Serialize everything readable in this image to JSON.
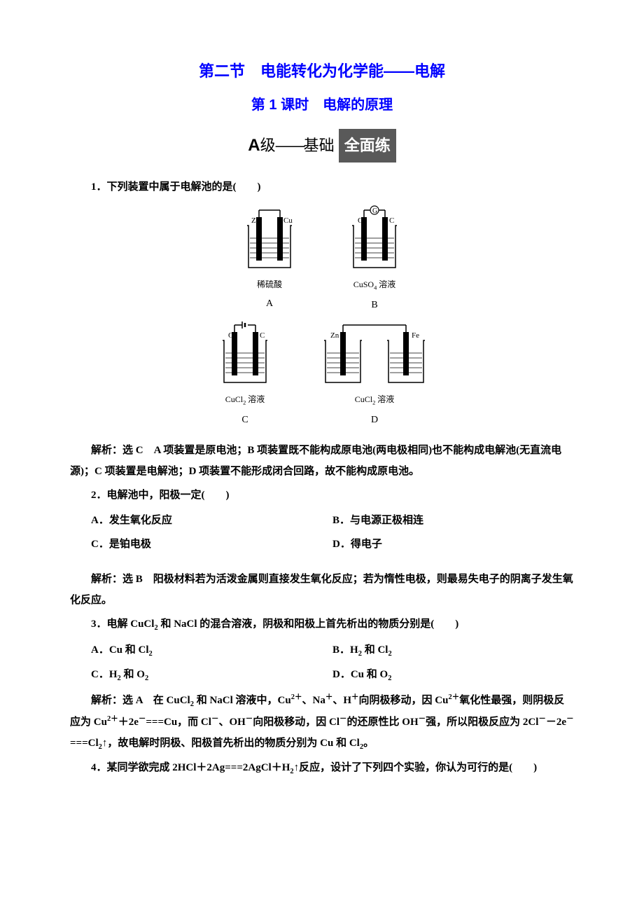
{
  "titles": {
    "main": "第二节　电能转化为化学能——电解",
    "sub": "第 1 课时　电解的原理",
    "color": "#0000ff"
  },
  "banner": {
    "A": "A",
    "ji": "级",
    "dash": "——",
    "jichu": "基础",
    "box": "全面练",
    "box_bg": "#595959",
    "box_fg": "#ffffff"
  },
  "q1": {
    "stem": "1．下列装置中属于电解池的是(　　)",
    "figures": {
      "A": {
        "left_electrode": "Zn",
        "right_electrode": "Cu",
        "solution": "稀硫酸",
        "label": "A",
        "top": "wire"
      },
      "B": {
        "left_electrode": "C",
        "right_electrode": "C",
        "solution_html": "CuSO<sub>4</sub> 溶液",
        "label": "B",
        "top": "galvanometer",
        "galv_symbol": "G"
      },
      "C": {
        "left_electrode": "C",
        "right_electrode": "C",
        "solution_html": "CuCl<sub>2</sub> 溶液",
        "label": "C",
        "top": "battery"
      },
      "D": {
        "left_electrode": "Zn",
        "right_electrode": "Fe",
        "solution_html": "CuCl<sub>2</sub> 溶液",
        "label": "D",
        "top": "wire",
        "double_beaker": true
      }
    },
    "explain_label": "解析：",
    "explain_answer": "选 C",
    "explain_body": "　A 项装置是原电池；B 项装置既不能构成原电池(两电极相同)也不能构成电解池(无直流电源)；C 项装置是电解池；D 项装置不能形成闭合回路，故不能构成原电池。"
  },
  "q2": {
    "stem": "2．电解池中，阳极一定(　　)",
    "options": {
      "A": "A．发生氧化反应",
      "B": "B．与电源正极相连",
      "C": "C．是铂电极",
      "D": "D．得电子"
    },
    "explain_label": "解析：",
    "explain_answer": "选 B",
    "explain_body": "　阳极材料若为活泼金属则直接发生氧化反应；若为惰性电极，则最易失电子的阴离子发生氧化反应。"
  },
  "q3": {
    "stem_html": "3．电解 CuCl<sub>2</sub> 和 NaCl 的混合溶液，阴极和阳极上首先析出的物质分别是(　　)",
    "options": {
      "A_html": "A．Cu 和 Cl<sub>2</sub>",
      "B_html": "B．H<sub>2</sub> 和 Cl<sub>2</sub>",
      "C_html": "C．H<sub>2</sub> 和 O<sub>2</sub>",
      "D_html": "D．Cu 和 O<sub>2</sub>"
    },
    "explain_label": "解析：",
    "explain_answer": "选 A",
    "explain_body_html": "　在 CuCl<sub>2</sub> 和 NaCl 溶液中，Cu<sup>2＋</sup>、Na<sup>＋</sup>、H<sup>＋</sup>向阴极移动，因 Cu<sup>2＋</sup>氧化性最强，则阴极反应为 Cu<sup>2＋</sup>＋2e<sup>－</sup>===Cu，而 Cl<sup>－</sup>、OH<sup>－</sup>向阳极移动，因 Cl<sup>－</sup>的还原性比 OH<sup>－</sup>强，所以阳极反应为 2Cl<sup>－</sup>－2e<sup>－</sup>===Cl<sub>2</sub>↑，故电解时阴极、阳极首先析出的物质分别为 Cu 和 Cl<sub>2</sub>。"
  },
  "q4": {
    "stem_html": "4．某同学欲完成 2HCl＋2Ag===2AgCl＋H<sub>2</sub>↑反应，设计了下列四个实验，你认为可行的是(　　)"
  },
  "svg": {
    "beaker_stroke": "#000000",
    "electrode_fill": "#000000",
    "liquid_lines": 5
  }
}
